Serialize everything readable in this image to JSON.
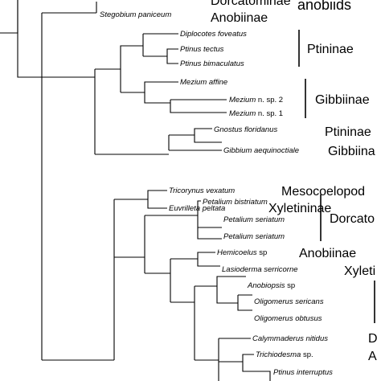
{
  "tree": {
    "taxa": [
      {
        "id": "t0",
        "genus": "Stegobium paniceum",
        "suffix": ""
      },
      {
        "id": "t1",
        "genus": "Diplocotes foveatus",
        "suffix": ""
      },
      {
        "id": "t2",
        "genus": "Ptinus tectus",
        "suffix": ""
      },
      {
        "id": "t3",
        "genus": "Ptinus bimaculatus",
        "suffix": ""
      },
      {
        "id": "t4",
        "genus": "Mezium affine",
        "suffix": ""
      },
      {
        "id": "t5",
        "genus": "Mezium",
        "suffix": " n. sp. 2"
      },
      {
        "id": "t6",
        "genus": "Mezium",
        "suffix": " n. sp. 1"
      },
      {
        "id": "t7",
        "genus": "Gnostus floridanus",
        "suffix": ""
      },
      {
        "id": "t8",
        "genus": "Gibbium aequinoctiale",
        "suffix": ""
      },
      {
        "id": "t9",
        "genus": "Tricorynus vexatum",
        "suffix": ""
      },
      {
        "id": "t10",
        "genus": "Euvrilleta peltata",
        "suffix": ""
      },
      {
        "id": "t11",
        "genus": "Petalium bistriatum",
        "suffix": ""
      },
      {
        "id": "t12",
        "genus": "Petalium seriatum",
        "suffix": ""
      },
      {
        "id": "t13",
        "genus": "Petalium seriatum",
        "suffix": ""
      },
      {
        "id": "t14",
        "genus": "Hemicoelus",
        "suffix": " sp"
      },
      {
        "id": "t15",
        "genus": "Lasioderma serricorne",
        "suffix": ""
      },
      {
        "id": "t16",
        "genus": "Anobiopsis",
        "suffix": " sp"
      },
      {
        "id": "t17",
        "genus": "Oligomerus sericans",
        "suffix": ""
      },
      {
        "id": "t18",
        "genus": "Oligomerus obtusus",
        "suffix": ""
      },
      {
        "id": "t19",
        "genus": "Calymmaderus nitidus",
        "suffix": ""
      },
      {
        "id": "t20",
        "genus": "Trichiodesma",
        "suffix": " sp."
      },
      {
        "id": "t21",
        "genus": "Ptinus interruptus",
        "suffix": ""
      }
    ],
    "clades": {
      "dorcatominae_top": "Dorcatominae",
      "anobiinae_top": "Anobiinae",
      "anobiids": "anobiids",
      "ptininae_1": "Ptininae",
      "gibbiinae_1": "Gibbiinae",
      "ptininae_2": "Ptininae",
      "gibbiinae_2": "Gibbiina",
      "mesocoelopod": "Mesocoelopod",
      "xyletininae_1": "Xyletininae",
      "dorcatominae_2": "Dorcato",
      "anobiinae_2": "Anobiinae",
      "xyletininae_2": "Xyleti",
      "cut_d": "D",
      "cut_a": "A"
    }
  }
}
